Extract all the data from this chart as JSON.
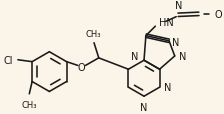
{
  "bg": "#faf5e8",
  "lc": "#1a1a1a",
  "lw": 1.15,
  "fs": 6.5,
  "figsize": [
    2.24,
    1.15
  ],
  "dpi": 100,
  "xlim": [
    0,
    224
  ],
  "ylim": [
    115,
    0
  ]
}
